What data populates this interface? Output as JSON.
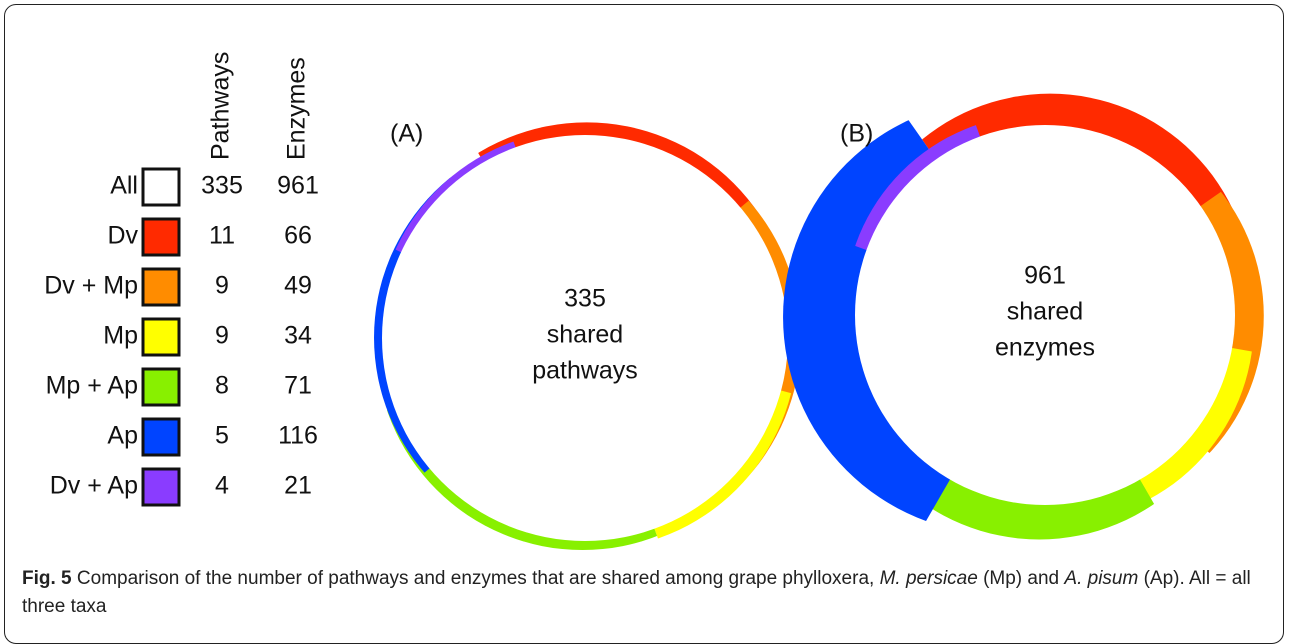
{
  "table": {
    "headers": [
      "Pathways",
      "Enzymes"
    ],
    "rows": [
      {
        "label": "All",
        "color": "#ffffff",
        "pathways": "335",
        "enzymes": "961"
      },
      {
        "label": "Dv",
        "color": "#ff2a00",
        "pathways": "11",
        "enzymes": "66"
      },
      {
        "label": "Dv + Mp",
        "color": "#ff8c00",
        "pathways": "9",
        "enzymes": "49"
      },
      {
        "label": "Mp",
        "color": "#ffff00",
        "pathways": "9",
        "enzymes": "34"
      },
      {
        "label": "Mp + Ap",
        "color": "#88f000",
        "pathways": "8",
        "enzymes": "71"
      },
      {
        "label": "Ap",
        "color": "#0044ff",
        "pathways": "5",
        "enzymes": "116"
      },
      {
        "label": "Dv + Ap",
        "color": "#8a3cff",
        "pathways": "4",
        "enzymes": "21"
      }
    ]
  },
  "panels": [
    {
      "label": "(A)",
      "lines": [
        "335",
        "shared",
        "pathways"
      ]
    },
    {
      "label": "(B)",
      "lines": [
        "961",
        "shared",
        "enzymes"
      ]
    }
  ],
  "caption": {
    "label": "Fig. 5",
    "parts": [
      " Comparison of the number of pathways and enzymes that are shared among grape phylloxera, ",
      "M. persicae",
      " (Mp) and ",
      "A. pisum",
      " (Ap). All = all three taxa"
    ]
  }
}
